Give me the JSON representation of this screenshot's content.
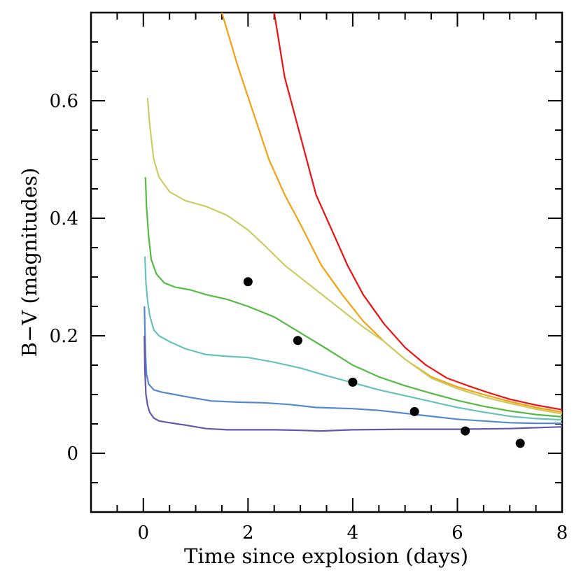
{
  "chart_data": {
    "type": "line",
    "xlabel": "Time since explosion (days)",
    "ylabel": "B−V (magnitudes)",
    "xlim": [
      -1,
      8
    ],
    "ylim": [
      -0.1,
      0.75
    ],
    "x_ticks": [
      0,
      2,
      4,
      6,
      8
    ],
    "x_tick_labels": [
      "0",
      "2",
      "4",
      "6",
      "8"
    ],
    "y_ticks": [
      0,
      0.2,
      0.4,
      0.6
    ],
    "y_tick_labels": [
      "0",
      "0.2",
      "0.4",
      "0.6"
    ],
    "grid": false,
    "legend": "none",
    "series": [
      {
        "color": "#ee1111",
        "x": [
          2.5,
          2.7,
          3.0,
          3.3,
          3.6,
          3.9,
          4.2,
          4.6,
          5.0,
          5.4,
          5.8,
          6.2,
          6.6,
          7.0,
          7.5,
          8.0
        ],
        "y": [
          0.75,
          0.64,
          0.54,
          0.44,
          0.38,
          0.32,
          0.27,
          0.22,
          0.18,
          0.15,
          0.128,
          0.115,
          0.103,
          0.092,
          0.082,
          0.074
        ]
      },
      {
        "color": "#f5a010",
        "x": [
          1.5,
          1.8,
          2.1,
          2.4,
          2.7,
          3.0,
          3.4,
          3.8,
          4.2,
          4.6,
          5.0,
          5.5,
          6.0,
          6.5,
          7.0,
          7.5,
          8.0
        ],
        "y": [
          0.75,
          0.66,
          0.58,
          0.5,
          0.44,
          0.39,
          0.32,
          0.27,
          0.225,
          0.19,
          0.16,
          0.13,
          0.113,
          0.1,
          0.088,
          0.078,
          0.07
        ]
      },
      {
        "color": "#cccc66",
        "x": [
          0.08,
          0.12,
          0.2,
          0.3,
          0.5,
          0.8,
          1.2,
          1.6,
          2.0,
          2.3,
          2.7,
          3.2,
          3.7,
          4.2,
          4.6,
          5.0,
          5.5,
          6.0,
          6.5,
          7.0,
          7.5,
          8.0
        ],
        "y": [
          0.605,
          0.56,
          0.5,
          0.47,
          0.445,
          0.43,
          0.42,
          0.405,
          0.38,
          0.355,
          0.32,
          0.285,
          0.25,
          0.215,
          0.19,
          0.16,
          0.128,
          0.11,
          0.096,
          0.085,
          0.075,
          0.067
        ]
      },
      {
        "color": "#55bb44",
        "x": [
          0.04,
          0.06,
          0.1,
          0.15,
          0.25,
          0.4,
          0.6,
          0.9,
          1.2,
          1.6,
          2.0,
          2.5,
          3.0,
          3.5,
          4.0,
          4.5,
          5.0,
          5.5,
          6.0,
          6.5,
          7.0,
          7.5,
          8.0
        ],
        "y": [
          0.47,
          0.42,
          0.37,
          0.33,
          0.305,
          0.29,
          0.283,
          0.278,
          0.27,
          0.262,
          0.25,
          0.232,
          0.205,
          0.178,
          0.15,
          0.13,
          0.115,
          0.102,
          0.09,
          0.08,
          0.072,
          0.066,
          0.062
        ]
      },
      {
        "color": "#66c2bb",
        "x": [
          0.03,
          0.05,
          0.08,
          0.12,
          0.2,
          0.3,
          0.5,
          0.8,
          1.2,
          1.6,
          2.0,
          2.5,
          3.0,
          3.5,
          4.0,
          4.5,
          5.0,
          5.5,
          6.0,
          6.5,
          7.0,
          7.5,
          8.0
        ],
        "y": [
          0.335,
          0.29,
          0.26,
          0.235,
          0.21,
          0.2,
          0.19,
          0.178,
          0.168,
          0.165,
          0.163,
          0.155,
          0.145,
          0.132,
          0.12,
          0.108,
          0.098,
          0.088,
          0.078,
          0.07,
          0.063,
          0.059,
          0.057
        ]
      },
      {
        "color": "#5588cc",
        "x": [
          0.02,
          0.04,
          0.06,
          0.1,
          0.2,
          0.35,
          0.6,
          0.9,
          1.3,
          1.8,
          2.3,
          2.8,
          3.3,
          4.0,
          4.5,
          5.0,
          5.5,
          6.0,
          6.5,
          7.0,
          7.5,
          8.0
        ],
        "y": [
          0.25,
          0.17,
          0.135,
          0.118,
          0.108,
          0.104,
          0.1,
          0.095,
          0.089,
          0.087,
          0.086,
          0.083,
          0.078,
          0.076,
          0.073,
          0.068,
          0.063,
          0.058,
          0.055,
          0.052,
          0.051,
          0.051
        ]
      },
      {
        "color": "#6655aa",
        "x": [
          0.02,
          0.03,
          0.05,
          0.08,
          0.12,
          0.2,
          0.3,
          0.5,
          0.8,
          1.2,
          1.6,
          2.0,
          2.5,
          3.0,
          3.4,
          4.0,
          5.0,
          6.0,
          7.0,
          8.0
        ],
        "y": [
          0.2,
          0.14,
          0.1,
          0.082,
          0.07,
          0.06,
          0.055,
          0.052,
          0.048,
          0.042,
          0.04,
          0.04,
          0.04,
          0.039,
          0.038,
          0.04,
          0.041,
          0.041,
          0.042,
          0.045
        ]
      }
    ],
    "points": {
      "color": "#000000",
      "x": [
        2.0,
        2.95,
        4.0,
        5.18,
        6.15,
        7.2
      ],
      "y": [
        0.292,
        0.192,
        0.121,
        0.071,
        0.038,
        0.017
      ]
    }
  }
}
